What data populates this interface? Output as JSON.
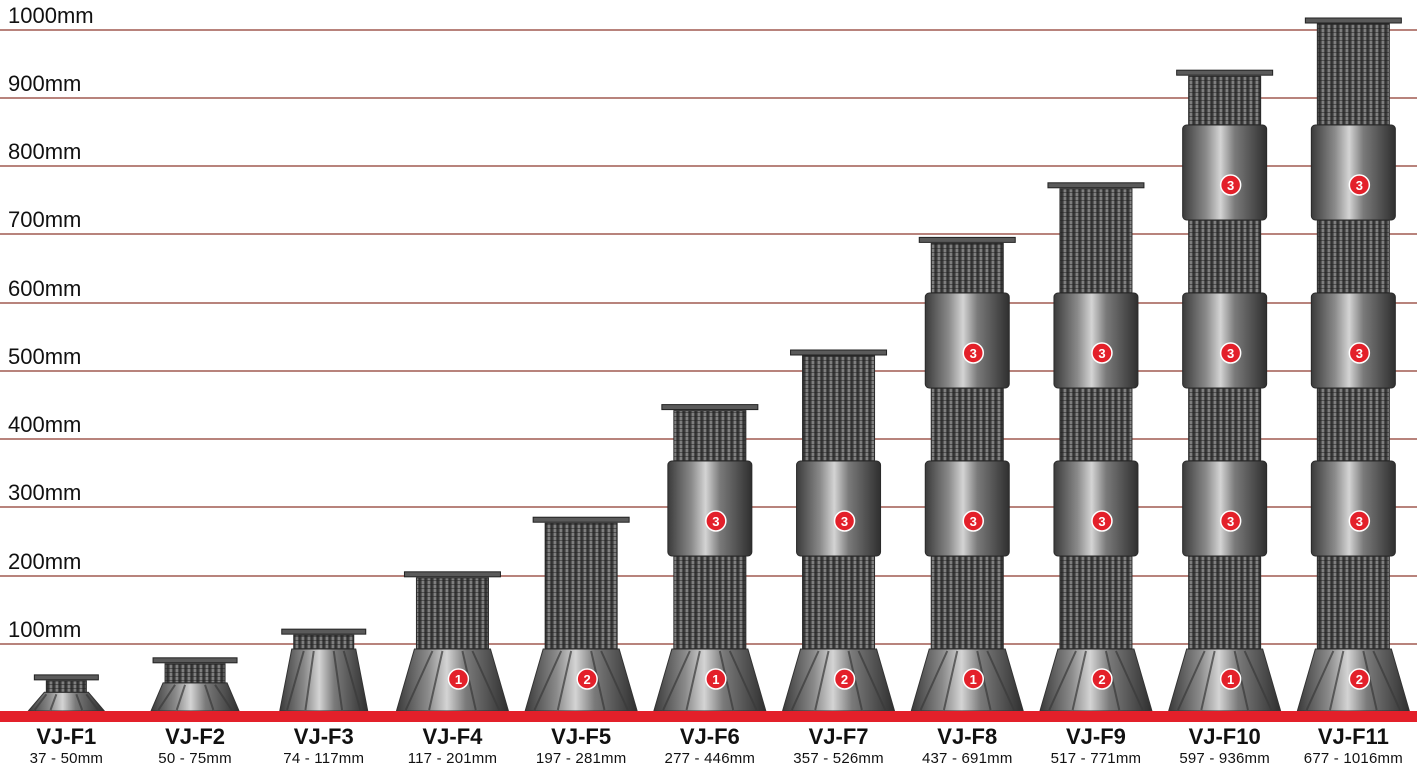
{
  "scale": {
    "levels": [
      {
        "label": "1000mm",
        "value": 1000
      },
      {
        "label": "900mm",
        "value": 900
      },
      {
        "label": "800mm",
        "value": 800
      },
      {
        "label": "700mm",
        "value": 700
      },
      {
        "label": "600mm",
        "value": 600
      },
      {
        "label": "500mm",
        "value": 500
      },
      {
        "label": "400mm",
        "value": 400
      },
      {
        "label": "300mm",
        "value": 300
      },
      {
        "label": "200mm",
        "value": 200
      },
      {
        "label": "100mm",
        "value": 100
      }
    ]
  },
  "colors": {
    "gridline": "#b8837c",
    "baseline": "#e3202a",
    "badge": "#e3202a",
    "pedestal_dark": "#4a4a4a",
    "pedestal_light": "#c9c9c9"
  },
  "models": [
    {
      "name": "VJ-F1",
      "range": "37 - 50mm",
      "max_height": 50,
      "badges": []
    },
    {
      "name": "VJ-F2",
      "range": "50 - 75mm",
      "max_height": 75,
      "badges": []
    },
    {
      "name": "VJ-F3",
      "range": "74 - 117mm",
      "max_height": 117,
      "badges": []
    },
    {
      "name": "VJ-F4",
      "range": "117 - 201mm",
      "max_height": 201,
      "badges": [
        "1"
      ]
    },
    {
      "name": "VJ-F5",
      "range": "197 - 281mm",
      "max_height": 281,
      "badges": [
        "2"
      ]
    },
    {
      "name": "VJ-F6",
      "range": "277 - 446mm",
      "max_height": 446,
      "badges": [
        "1",
        "3"
      ]
    },
    {
      "name": "VJ-F7",
      "range": "357 - 526mm",
      "max_height": 526,
      "badges": [
        "2",
        "3"
      ]
    },
    {
      "name": "VJ-F8",
      "range": "437 - 691mm",
      "max_height": 691,
      "badges": [
        "1",
        "3",
        "3"
      ]
    },
    {
      "name": "VJ-F9",
      "range": "517 - 771mm",
      "max_height": 771,
      "badges": [
        "2",
        "3",
        "3"
      ]
    },
    {
      "name": "VJ-F10",
      "range": "597 - 936mm",
      "max_height": 936,
      "badges": [
        "1",
        "3",
        "3",
        "3"
      ]
    },
    {
      "name": "VJ-F11",
      "range": "677 - 1016mm",
      "max_height": 1016,
      "badges": [
        "2",
        "3",
        "3",
        "3"
      ]
    }
  ]
}
